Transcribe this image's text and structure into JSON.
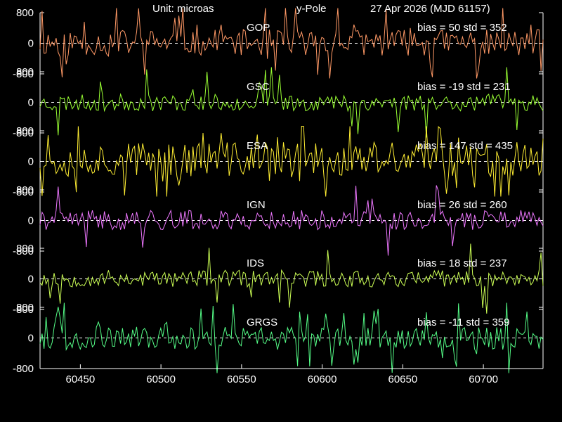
{
  "header": {
    "unit": "Unit: microas",
    "parameter": "y-Pole",
    "date": "27 Apr 2026  (MJD 61157)"
  },
  "colors": {
    "background": "#000000",
    "axes": "#ffffff",
    "zero_line": "#ffffff"
  },
  "chart_data": {
    "type": "line",
    "x_axis": {
      "range": [
        60425,
        60737
      ],
      "ticks": [
        60450,
        60500,
        60550,
        60600,
        60650,
        60700
      ]
    },
    "y_axis": {
      "range": [
        -800,
        800
      ],
      "ticks": [
        800,
        0,
        -800
      ]
    },
    "zero_line": "dashed",
    "panels": [
      {
        "label": "GOP",
        "bias": 50,
        "std": 352,
        "stats": "bias = 50  std = 352",
        "color": "#ff9966",
        "spread": 0.85,
        "seed": 11,
        "spike_rate": 0.1
      },
      {
        "label": "GSC",
        "bias": -19,
        "std": 231,
        "stats": "bias = -19  std = 231",
        "color": "#99ff33",
        "spread": 0.55,
        "seed": 23,
        "spike_rate": 0.05
      },
      {
        "label": "ESA",
        "bias": 147,
        "std": 435,
        "stats": "bias = 147  std = 435",
        "color": "#ffee33",
        "spread": 1.15,
        "seed": 37,
        "spike_rate": 0.14
      },
      {
        "label": "IGN",
        "bias": 26,
        "std": 260,
        "stats": "bias = 26  std = 260",
        "color": "#ee77ff",
        "spread": 0.65,
        "seed": 41,
        "spike_rate": 0.05
      },
      {
        "label": "IDS",
        "bias": 18,
        "std": 237,
        "stats": "bias = 18  std = 237",
        "color": "#ccff55",
        "spread": 0.55,
        "seed": 53,
        "spike_rate": 0.05
      },
      {
        "label": "GRGS",
        "bias": -11,
        "std": 359,
        "stats": "bias = -11  std = 359",
        "color": "#55ff88",
        "spread": 0.75,
        "seed": 67,
        "spike_rate": 0.1
      }
    ]
  }
}
